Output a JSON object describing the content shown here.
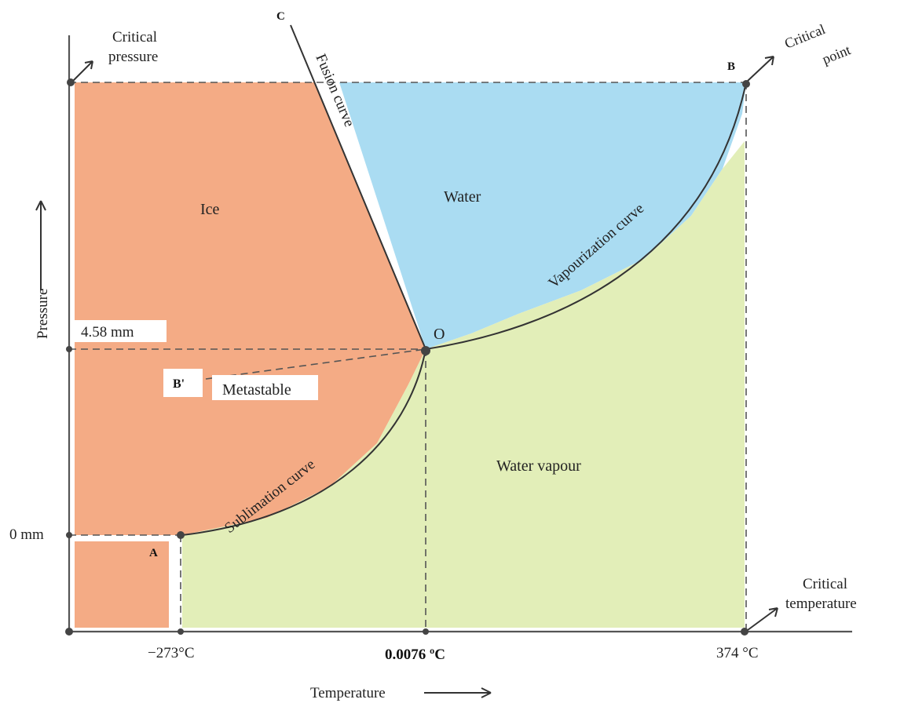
{
  "colors": {
    "ice": "#f4ab85",
    "water": "#aadcf2",
    "vapour": "#e2eeb8",
    "line": "#333333"
  },
  "regions": {
    "ice": "Ice",
    "water": "Water",
    "vapour": "Water vapour",
    "metastable": "Metastable"
  },
  "curves": {
    "fusion": "Fusion curve",
    "vaporization": "Vapourization curve",
    "sublimation": "Sublimation curve"
  },
  "points": {
    "a": "A",
    "b": "B",
    "b_prime": "B'",
    "c": "C",
    "o": "O"
  },
  "annotations": {
    "critical_pressure_line1": "Critical",
    "critical_pressure_line2": "pressure",
    "critical_point_line1": "Critical",
    "critical_point_line2": "point",
    "critical_temperature_line1": "Critical",
    "critical_temperature_line2": "temperature"
  },
  "y_axis": {
    "label": "Pressure",
    "ticks": [
      "4.58 mm",
      "0 mm"
    ]
  },
  "x_axis": {
    "label": "Temperature",
    "ticks": [
      "−273°C",
      "0.0076 ºC",
      "374 °C"
    ]
  }
}
